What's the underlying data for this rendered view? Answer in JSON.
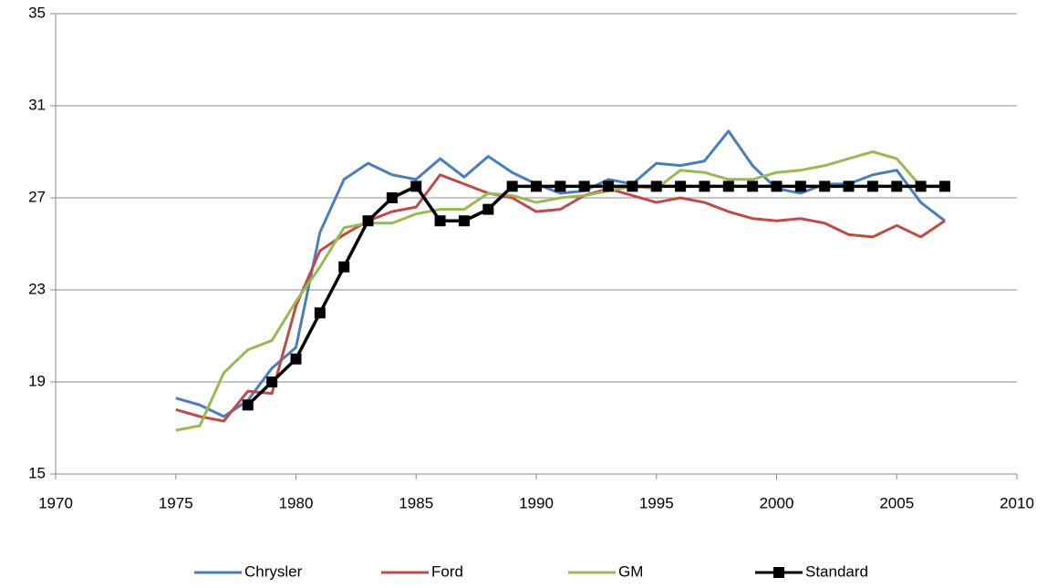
{
  "chart_data": {
    "type": "line",
    "x": [
      1975,
      1976,
      1977,
      1978,
      1979,
      1980,
      1981,
      1982,
      1983,
      1984,
      1985,
      1986,
      1987,
      1988,
      1989,
      1990,
      1991,
      1992,
      1993,
      1994,
      1995,
      1996,
      1997,
      1998,
      1999,
      2000,
      2001,
      2002,
      2003,
      2004,
      2005,
      2006,
      2007
    ],
    "series": [
      {
        "name": "Chrysler",
        "color": "#4a7ebb",
        "values": [
          18.3,
          18.0,
          17.5,
          18.2,
          19.6,
          20.5,
          25.5,
          27.8,
          28.5,
          28.0,
          27.8,
          28.7,
          27.9,
          28.8,
          28.1,
          27.6,
          27.2,
          27.3,
          27.8,
          27.6,
          28.5,
          28.4,
          28.6,
          29.9,
          28.4,
          27.4,
          27.2,
          27.6,
          27.6,
          28.0,
          28.2,
          26.8,
          26.0
        ]
      },
      {
        "name": "Ford",
        "color": "#be4b48",
        "values": [
          17.8,
          17.5,
          17.3,
          18.6,
          18.5,
          22.3,
          24.7,
          25.4,
          26.0,
          26.4,
          26.6,
          28.0,
          27.6,
          27.2,
          27.0,
          26.4,
          26.5,
          27.1,
          27.4,
          27.1,
          26.8,
          27.0,
          26.8,
          26.4,
          26.1,
          26.0,
          26.1,
          25.9,
          25.4,
          25.3,
          25.8,
          25.3,
          26.0
        ]
      },
      {
        "name": "GM",
        "color": "#98b954",
        "values": [
          16.9,
          17.1,
          19.4,
          20.4,
          20.8,
          22.5,
          24.0,
          25.7,
          25.9,
          25.9,
          26.3,
          26.5,
          26.5,
          27.2,
          27.1,
          26.8,
          27.0,
          27.1,
          27.3,
          27.5,
          27.4,
          28.2,
          28.1,
          27.8,
          27.8,
          28.1,
          28.2,
          28.4,
          28.7,
          29.0,
          28.7,
          27.5,
          27.5
        ]
      },
      {
        "name": "Standard",
        "color": "#000000",
        "marker": "square",
        "values": [
          null,
          null,
          null,
          18.0,
          19.0,
          20.0,
          22.0,
          24.0,
          26.0,
          27.0,
          27.5,
          26.0,
          26.0,
          26.5,
          27.5,
          27.5,
          27.5,
          27.5,
          27.5,
          27.5,
          27.5,
          27.5,
          27.5,
          27.5,
          27.5,
          27.5,
          27.5,
          27.5,
          27.5,
          27.5,
          27.5,
          27.5,
          27.5
        ]
      }
    ],
    "xlim": [
      1970,
      2010
    ],
    "xticks": [
      1970,
      1975,
      1980,
      1985,
      1990,
      1995,
      2000,
      2005,
      2010
    ],
    "ylim": [
      15,
      35
    ],
    "yticks": [
      15,
      19,
      23,
      27,
      31,
      35
    ],
    "grid": true,
    "legend": "bottom"
  }
}
